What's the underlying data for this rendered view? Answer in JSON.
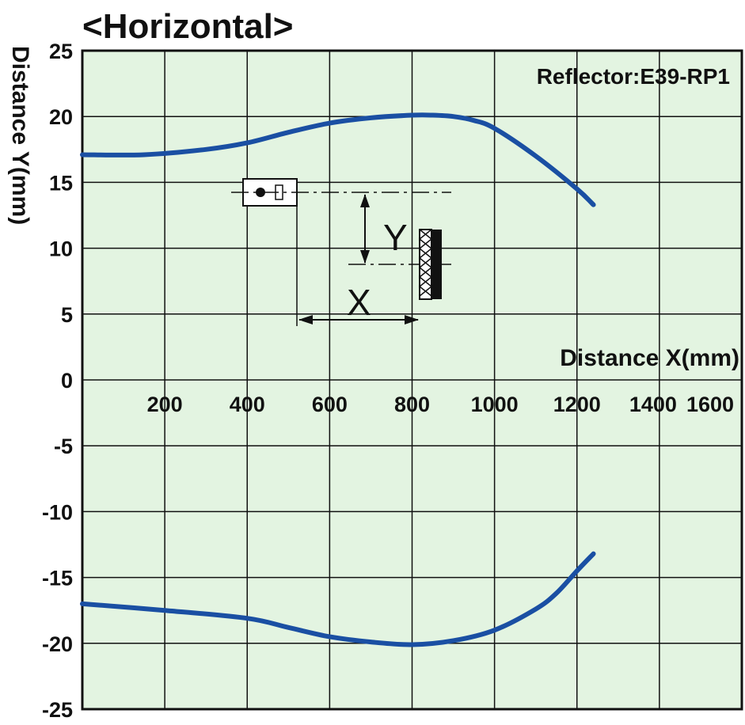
{
  "chart_data": {
    "type": "line",
    "title": "<Horizontal>",
    "xlabel": "Distance X(mm)",
    "ylabel": "Distance Y(mm)",
    "annotation": "Reflector:E39-RP1",
    "xlim": [
      0,
      1600
    ],
    "ylim": [
      -25,
      25
    ],
    "grid": true,
    "x_ticks": [
      200,
      400,
      600,
      800,
      1000,
      1200,
      1400,
      1600
    ],
    "x_tick_labels": [
      "200",
      "400",
      "600",
      "800",
      "1000",
      "1200",
      "1400",
      "1600"
    ],
    "y_ticks": [
      25,
      20,
      15,
      10,
      5,
      0,
      -5,
      -10,
      -15,
      -20,
      -25
    ],
    "y_tick_labels": [
      "25",
      "20",
      "15",
      "10",
      "5",
      "0",
      "-5",
      "-10",
      "-15",
      "-20",
      "-25"
    ],
    "series_color": "#1a4fa3",
    "plot_background": "#e3f4e1",
    "series": [
      {
        "x": [
          0,
          150,
          300,
          400,
          500,
          600,
          700,
          800,
          850,
          900,
          950,
          1000,
          1100,
          1200,
          1240
        ],
        "values": [
          17.1,
          17.1,
          17.5,
          18.0,
          18.8,
          19.5,
          19.9,
          20.1,
          20.1,
          20.0,
          19.7,
          19.1,
          17.0,
          14.5,
          13.3
        ]
      },
      {
        "x": [
          0,
          200,
          400,
          500,
          600,
          700,
          800,
          900,
          1000,
          1100,
          1150,
          1200,
          1240
        ],
        "values": [
          -17.0,
          -17.5,
          -18.1,
          -18.8,
          -19.5,
          -19.9,
          -20.1,
          -19.8,
          -19.0,
          -17.4,
          -16.2,
          -14.5,
          -13.2
        ]
      }
    ],
    "inset": {
      "dim_x_label": "X",
      "dim_y_label": "Y"
    }
  }
}
